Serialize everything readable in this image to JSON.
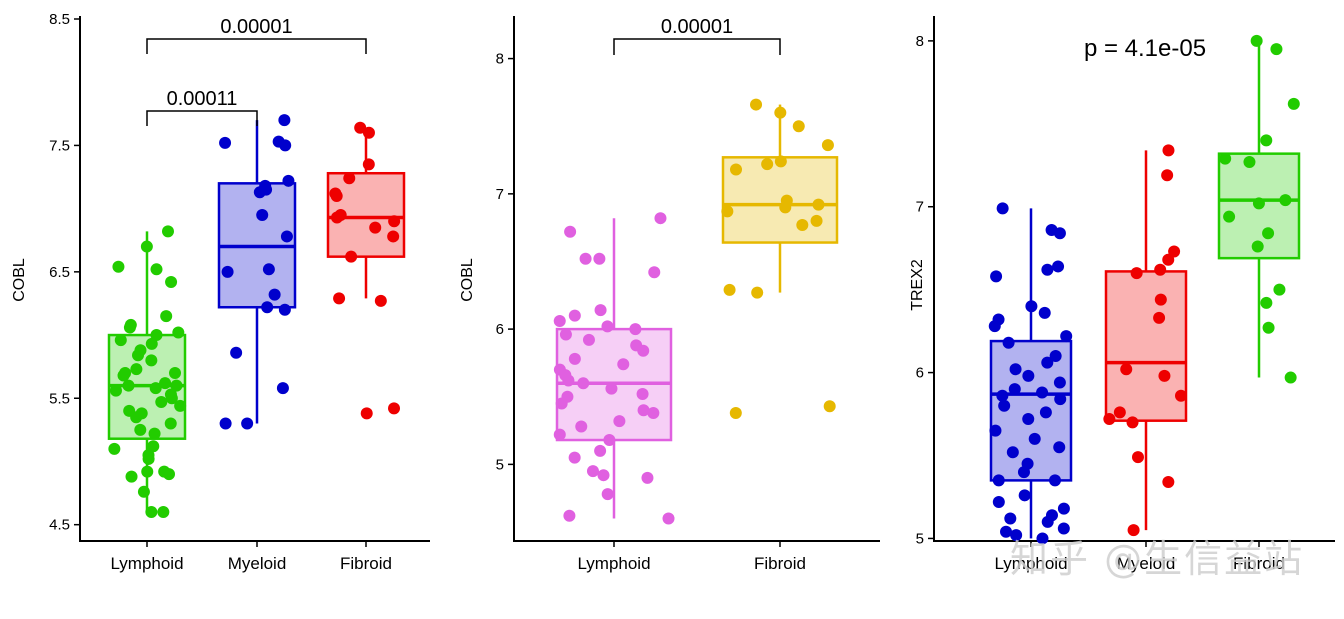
{
  "chart_data": [
    {
      "type": "box",
      "ylabel": "COBL",
      "ylim": [
        4.45,
        8.5
      ],
      "yticks": [
        4.5,
        5.5,
        6.5,
        7.5,
        8.5
      ],
      "ytick_labels": [
        "4.5",
        "5.5",
        "6.5",
        "7.5",
        "8.5"
      ],
      "categories": [
        "Lymphoid",
        "Myeloid",
        "Fibroid"
      ],
      "colors": {
        "Lymphoid": "#22cc00",
        "Myeloid": "#0000cc",
        "Fibroid": "#ee0000"
      },
      "boxes": [
        {
          "category": "Lymphoid",
          "whisker_low": 4.6,
          "q1": 5.18,
          "median": 5.6,
          "q3": 6.0,
          "whisker_high": 6.82
        },
        {
          "category": "Myeloid",
          "whisker_low": 5.3,
          "q1": 6.22,
          "median": 6.7,
          "q3": 7.2,
          "whisker_high": 7.7
        },
        {
          "category": "Fibroid",
          "whisker_low": 6.29,
          "q1": 6.62,
          "median": 6.93,
          "q3": 7.28,
          "whisker_high": 7.64
        }
      ],
      "points": [
        {
          "category": "Lymphoid",
          "values": [
            4.6,
            4.6,
            4.76,
            4.88,
            4.9,
            4.92,
            4.92,
            5.02,
            5.05,
            5.1,
            5.12,
            5.22,
            5.25,
            5.3,
            5.35,
            5.38,
            5.4,
            5.44,
            5.47,
            5.5,
            5.53,
            5.56,
            5.58,
            5.6,
            5.6,
            5.62,
            5.68,
            5.7,
            5.7,
            5.73,
            5.8,
            5.84,
            5.88,
            5.93,
            5.96,
            6.0,
            6.02,
            6.06,
            6.08,
            6.15,
            6.42,
            6.52,
            6.54,
            6.7,
            6.82
          ]
        },
        {
          "category": "Myeloid",
          "values": [
            5.3,
            5.3,
            5.58,
            5.86,
            6.2,
            6.22,
            6.32,
            6.5,
            6.52,
            6.78,
            6.95,
            7.13,
            7.15,
            7.18,
            7.22,
            7.5,
            7.52,
            7.53,
            7.7
          ]
        },
        {
          "category": "Fibroid",
          "values": [
            5.38,
            5.42,
            6.27,
            6.29,
            6.62,
            6.78,
            6.85,
            6.9,
            6.93,
            6.95,
            7.1,
            7.12,
            7.24,
            7.35,
            7.6,
            7.64
          ]
        }
      ],
      "annotations": [
        {
          "from": "Lymphoid",
          "to": "Fibroid",
          "label": "0.00001"
        },
        {
          "from": "Lymphoid",
          "to": "Myeloid",
          "label": "0.00011"
        }
      ]
    },
    {
      "type": "box",
      "ylabel": "COBL",
      "ylim": [
        4.5,
        8.3
      ],
      "yticks": [
        5,
        6,
        7,
        8
      ],
      "ytick_labels": [
        "5",
        "6",
        "7",
        "8"
      ],
      "categories": [
        "Lymphoid",
        "Fibroid"
      ],
      "colors": {
        "Lymphoid": "#e060e0",
        "Fibroid": "#e6b800"
      },
      "boxes": [
        {
          "category": "Lymphoid",
          "whisker_low": 4.6,
          "q1": 5.18,
          "median": 5.6,
          "q3": 6.0,
          "whisker_high": 6.82
        },
        {
          "category": "Fibroid",
          "whisker_low": 6.27,
          "q1": 6.64,
          "median": 6.92,
          "q3": 7.27,
          "whisker_high": 7.66
        }
      ],
      "points": [
        {
          "category": "Lymphoid",
          "values": [
            4.6,
            4.62,
            4.78,
            4.9,
            4.92,
            4.95,
            5.05,
            5.1,
            5.18,
            5.22,
            5.28,
            5.32,
            5.38,
            5.4,
            5.45,
            5.5,
            5.52,
            5.56,
            5.6,
            5.62,
            5.66,
            5.7,
            5.74,
            5.78,
            5.84,
            5.88,
            5.92,
            5.96,
            6.0,
            6.02,
            6.06,
            6.1,
            6.14,
            6.42,
            6.52,
            6.52,
            6.72,
            6.82
          ]
        },
        {
          "category": "Fibroid",
          "values": [
            5.38,
            5.43,
            6.27,
            6.29,
            6.77,
            6.8,
            6.87,
            6.9,
            6.92,
            6.95,
            7.18,
            7.22,
            7.24,
            7.36,
            7.5,
            7.6,
            7.66
          ]
        }
      ],
      "annotations": [
        {
          "from": "Lymphoid",
          "to": "Fibroid",
          "label": "0.00001"
        }
      ]
    },
    {
      "type": "box",
      "ylabel": "TREX2",
      "ylim": [
        4.87,
        8.15
      ],
      "yticks": [
        5,
        6,
        7,
        8
      ],
      "ytick_labels": [
        "5",
        "6",
        "7",
        "8"
      ],
      "categories": [
        "Lymphoid",
        "Myeloid",
        "Fibroid"
      ],
      "colors": {
        "Lymphoid": "#0000cc",
        "Myeloid": "#ee0000",
        "Fibroid": "#22cc00"
      },
      "boxes": [
        {
          "category": "Lymphoid",
          "whisker_low": 5.0,
          "q1": 5.35,
          "median": 5.87,
          "q3": 6.19,
          "whisker_high": 6.99
        },
        {
          "category": "Myeloid",
          "whisker_low": 5.05,
          "q1": 5.71,
          "median": 6.06,
          "q3": 6.61,
          "whisker_high": 7.34
        },
        {
          "category": "Fibroid",
          "whisker_low": 5.97,
          "q1": 6.69,
          "median": 7.04,
          "q3": 7.32,
          "whisker_high": 8.0
        }
      ],
      "points": [
        {
          "category": "Lymphoid",
          "values": [
            5.0,
            5.02,
            5.04,
            5.06,
            5.1,
            5.12,
            5.14,
            5.18,
            5.22,
            5.26,
            5.35,
            5.35,
            5.4,
            5.45,
            5.52,
            5.55,
            5.6,
            5.65,
            5.72,
            5.76,
            5.8,
            5.84,
            5.86,
            5.88,
            5.9,
            5.94,
            5.98,
            6.02,
            6.06,
            6.1,
            6.18,
            6.22,
            6.28,
            6.32,
            6.36,
            6.4,
            6.58,
            6.62,
            6.64,
            6.84,
            6.86,
            6.99
          ]
        },
        {
          "category": "Myeloid",
          "values": [
            5.05,
            5.34,
            5.49,
            5.7,
            5.72,
            5.76,
            5.86,
            5.98,
            6.02,
            6.33,
            6.44,
            6.6,
            6.62,
            6.68,
            6.73,
            7.19,
            7.34
          ]
        },
        {
          "category": "Fibroid",
          "values": [
            5.97,
            6.27,
            6.42,
            6.5,
            6.76,
            6.84,
            6.94,
            7.02,
            7.04,
            7.27,
            7.29,
            7.4,
            7.62,
            7.95,
            8.0
          ]
        }
      ],
      "annotations": [
        {
          "label": "p = 4.1e-05"
        }
      ]
    }
  ],
  "watermark": "知乎 @生信益站"
}
